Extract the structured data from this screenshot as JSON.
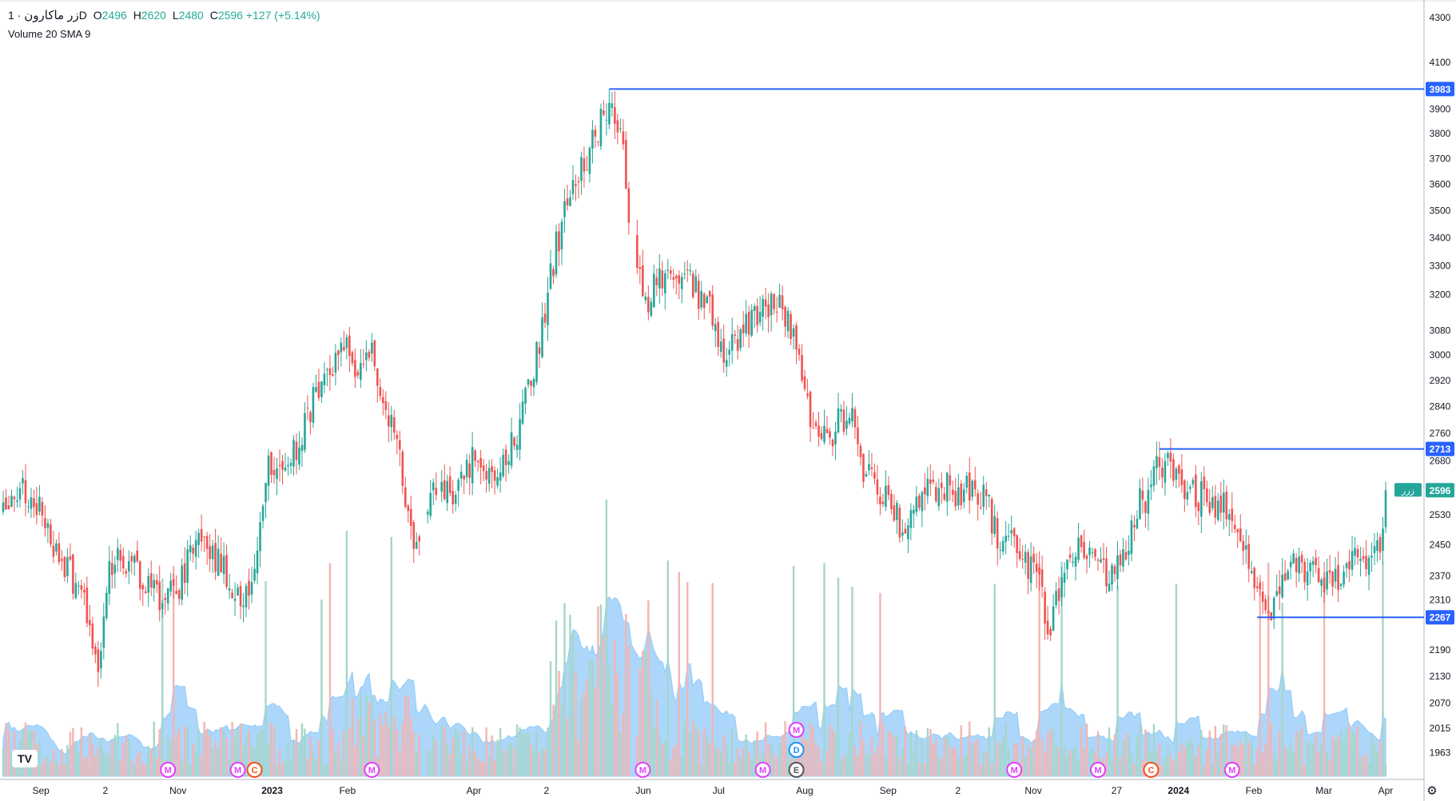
{
  "header": {
    "symbol": "زر ماکارون",
    "separator": "·",
    "interval": "1D",
    "ohlc": [
      {
        "key": "O",
        "value": "2496"
      },
      {
        "key": "H",
        "value": "2620"
      },
      {
        "key": "L",
        "value": "2480"
      },
      {
        "key": "C",
        "value": "2596"
      }
    ],
    "change": "+127 (+5.14%)",
    "indicator": "Volume 20 SMA 9"
  },
  "colors": {
    "up": "#26a69a",
    "down": "#ef5350",
    "up_volume": "#a5d6c8",
    "down_volume": "#f4b4b1",
    "sma_fill": "#90caf9",
    "level_line": "#2962ff",
    "axis_text": "#131722"
  },
  "chart_data": {
    "type": "candlestick",
    "y_scale": "log",
    "ylim": [
      1920,
      4350
    ],
    "y_ticks": [
      4300,
      4100,
      3900,
      3800,
      3700,
      3600,
      3500,
      3400,
      3300,
      3200,
      3080,
      3000,
      2920,
      2840,
      2760,
      2680,
      2530,
      2450,
      2370,
      2310,
      2190,
      2130,
      2070,
      2015,
      1963
    ],
    "x_ticks": [
      "Sep",
      "2",
      "Nov",
      "2023",
      "Feb",
      "Apr",
      "2",
      "Jun",
      "Jul",
      "Aug",
      "Sep",
      "2",
      "Nov",
      "27",
      "2024",
      "Feb",
      "Mar",
      "Apr"
    ],
    "price_anchors": [
      [
        0,
        2570
      ],
      [
        6,
        2620
      ],
      [
        12,
        2560
      ],
      [
        18,
        2450
      ],
      [
        24,
        2380
      ],
      [
        30,
        2270
      ],
      [
        34,
        2160
      ],
      [
        37,
        2350
      ],
      [
        42,
        2430
      ],
      [
        48,
        2390
      ],
      [
        54,
        2320
      ],
      [
        58,
        2300
      ],
      [
        64,
        2360
      ],
      [
        70,
        2470
      ],
      [
        76,
        2420
      ],
      [
        82,
        2340
      ],
      [
        86,
        2310
      ],
      [
        90,
        2360
      ],
      [
        94,
        2650
      ],
      [
        100,
        2680
      ],
      [
        106,
        2720
      ],
      [
        112,
        2900
      ],
      [
        118,
        2960
      ],
      [
        122,
        3020
      ],
      [
        128,
        2960
      ],
      [
        132,
        3030
      ],
      [
        137,
        2820
      ],
      [
        140,
        2750
      ],
      [
        143,
        2630
      ],
      [
        148,
        2440
      ],
      [
        154,
        2580
      ],
      [
        160,
        2580
      ],
      [
        166,
        2660
      ],
      [
        170,
        2690
      ],
      [
        176,
        2610
      ],
      [
        180,
        2700
      ],
      [
        186,
        2810
      ],
      [
        192,
        3050
      ],
      [
        197,
        3320
      ],
      [
        203,
        3580
      ],
      [
        209,
        3700
      ],
      [
        215,
        3870
      ],
      [
        217,
        3970
      ],
      [
        221,
        3800
      ],
      [
        225,
        3400
      ],
      [
        230,
        3150
      ],
      [
        235,
        3260
      ],
      [
        241,
        3300
      ],
      [
        247,
        3230
      ],
      [
        253,
        3150
      ],
      [
        258,
        3000
      ],
      [
        264,
        3060
      ],
      [
        270,
        3150
      ],
      [
        276,
        3170
      ],
      [
        282,
        3100
      ],
      [
        287,
        2870
      ],
      [
        292,
        2710
      ],
      [
        298,
        2780
      ],
      [
        303,
        2830
      ],
      [
        308,
        2660
      ],
      [
        314,
        2580
      ],
      [
        319,
        2540
      ],
      [
        323,
        2470
      ],
      [
        327,
        2560
      ],
      [
        333,
        2600
      ],
      [
        339,
        2600
      ],
      [
        346,
        2590
      ],
      [
        351,
        2590
      ],
      [
        356,
        2470
      ],
      [
        362,
        2460
      ],
      [
        367,
        2400
      ],
      [
        371,
        2340
      ],
      [
        375,
        2220
      ],
      [
        380,
        2400
      ],
      [
        385,
        2440
      ],
      [
        391,
        2390
      ],
      [
        396,
        2370
      ],
      [
        401,
        2400
      ],
      [
        406,
        2550
      ],
      [
        411,
        2590
      ],
      [
        414,
        2680
      ],
      [
        418,
        2660
      ],
      [
        423,
        2600
      ],
      [
        428,
        2580
      ],
      [
        434,
        2560
      ],
      [
        440,
        2550
      ],
      [
        445,
        2440
      ],
      [
        450,
        2300
      ],
      [
        455,
        2300
      ],
      [
        460,
        2420
      ],
      [
        466,
        2390
      ],
      [
        471,
        2350
      ],
      [
        476,
        2350
      ],
      [
        481,
        2380
      ],
      [
        485,
        2420
      ],
      [
        489,
        2390
      ],
      [
        493,
        2430
      ],
      [
        495,
        2596
      ]
    ],
    "level_lines": [
      {
        "value": 3983,
        "label": "3983",
        "from_bar": 217
      },
      {
        "value": 2713,
        "label": "2713",
        "from_bar": 414
      },
      {
        "value": 2267,
        "label": "2267",
        "from_bar": 449
      }
    ],
    "last_price": {
      "value": 2596,
      "label": "2596",
      "tag": "زرر"
    },
    "event_markers": [
      {
        "bar": 59,
        "letter": "M",
        "color": "#e040fb",
        "row": 0
      },
      {
        "bar": 84,
        "letter": "M",
        "color": "#e040fb",
        "row": 0
      },
      {
        "bar": 90,
        "letter": "C",
        "color": "#f4511e",
        "row": 0
      },
      {
        "bar": 132,
        "letter": "M",
        "color": "#e040fb",
        "row": 0
      },
      {
        "bar": 229,
        "letter": "M",
        "color": "#e040fb",
        "row": 0
      },
      {
        "bar": 272,
        "letter": "M",
        "color": "#e040fb",
        "row": 0
      },
      {
        "bar": 284,
        "letter": "E",
        "color": "#555555",
        "row": 0
      },
      {
        "bar": 284,
        "letter": "D",
        "color": "#2196f3",
        "row": 1
      },
      {
        "bar": 284,
        "letter": "M",
        "color": "#e040fb",
        "row": 2
      },
      {
        "bar": 362,
        "letter": "M",
        "color": "#e040fb",
        "row": 0
      },
      {
        "bar": 392,
        "letter": "M",
        "color": "#e040fb",
        "row": 0
      },
      {
        "bar": 411,
        "letter": "C",
        "color": "#f4511e",
        "row": 0
      },
      {
        "bar": 440,
        "letter": "M",
        "color": "#e040fb",
        "row": 0
      }
    ]
  }
}
